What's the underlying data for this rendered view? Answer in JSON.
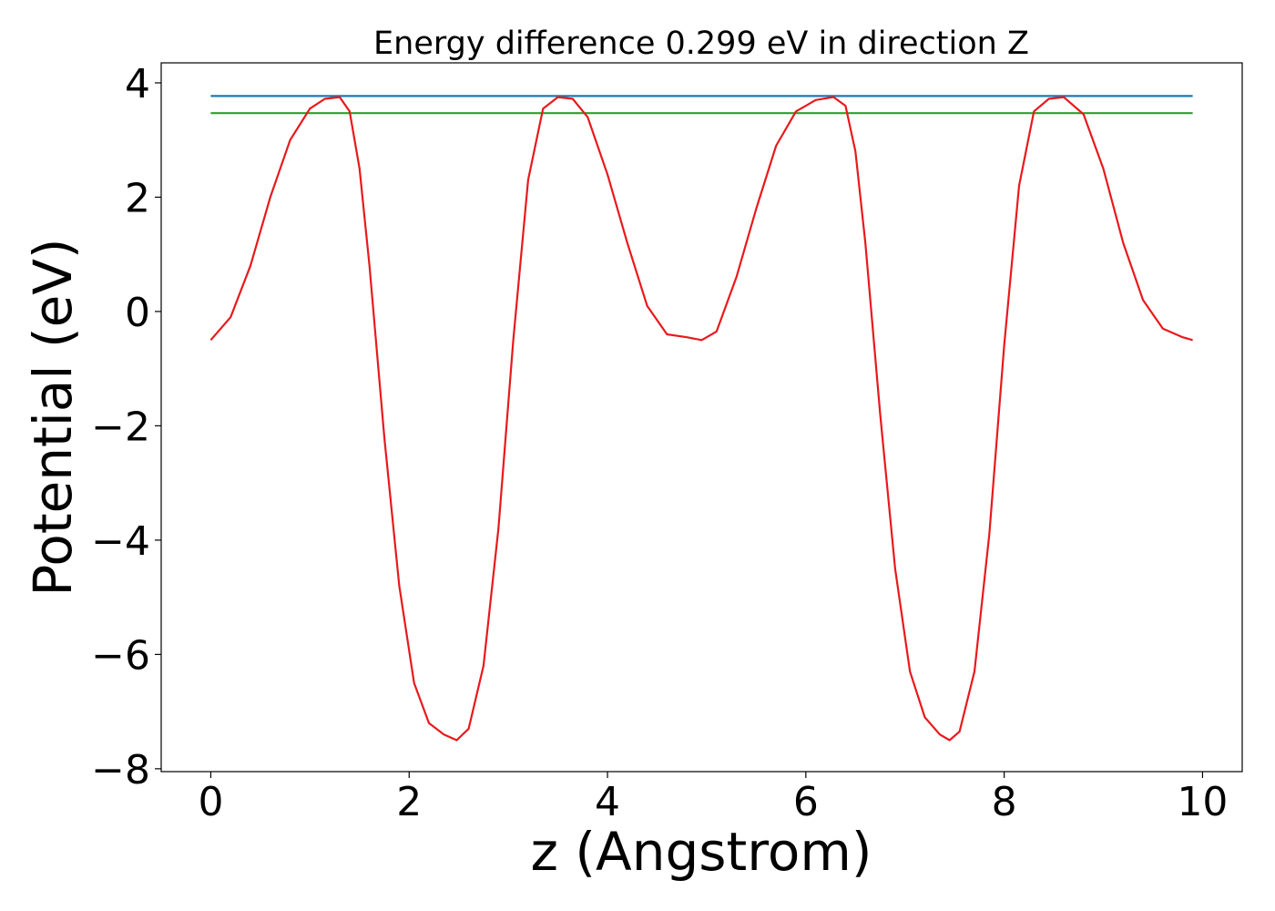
{
  "chart_data": {
    "type": "line",
    "title": "Energy difference 0.299 eV in direction Z",
    "xlabel": "z (Angstrom)",
    "ylabel": "Potential (eV)",
    "xlim": [
      -0.5,
      10.4
    ],
    "ylim": [
      -8.05,
      4.35
    ],
    "xticks": [
      0,
      2,
      4,
      6,
      8,
      10
    ],
    "xtick_labels": [
      "0",
      "2",
      "4",
      "6",
      "8",
      "10"
    ],
    "yticks": [
      4,
      2,
      0,
      -2,
      -4,
      -6,
      -8
    ],
    "ytick_labels": [
      "4",
      "2",
      "0",
      "−2",
      "−4",
      "−6",
      "−8"
    ],
    "grid": false,
    "legend": "none",
    "series": [
      {
        "color": "#1f77b4",
        "x": [
          0.0,
          9.9
        ],
        "y": [
          3.77,
          3.77
        ]
      },
      {
        "color": "#2ca02c",
        "x": [
          0.0,
          9.9
        ],
        "y": [
          3.47,
          3.47
        ]
      },
      {
        "color": "#e8191c",
        "x": [
          0.0,
          0.2,
          0.4,
          0.6,
          0.8,
          1.0,
          1.15,
          1.3,
          1.4,
          1.5,
          1.6,
          1.75,
          1.9,
          2.05,
          2.2,
          2.35,
          2.48,
          2.6,
          2.75,
          2.9,
          3.05,
          3.2,
          3.35,
          3.5,
          3.65,
          3.8,
          4.0,
          4.2,
          4.4,
          4.6,
          4.8,
          4.95,
          5.1,
          5.3,
          5.5,
          5.7,
          5.9,
          6.1,
          6.28,
          6.4,
          6.5,
          6.6,
          6.75,
          6.9,
          7.05,
          7.2,
          7.35,
          7.45,
          7.55,
          7.7,
          7.85,
          8.0,
          8.15,
          8.3,
          8.45,
          8.6,
          8.8,
          9.0,
          9.2,
          9.4,
          9.6,
          9.8,
          9.9
        ],
        "y": [
          -0.5,
          -0.1,
          0.8,
          2.0,
          3.0,
          3.55,
          3.72,
          3.75,
          3.5,
          2.5,
          0.8,
          -2.2,
          -4.8,
          -6.5,
          -7.2,
          -7.4,
          -7.5,
          -7.3,
          -6.2,
          -3.8,
          -0.5,
          2.3,
          3.55,
          3.75,
          3.72,
          3.4,
          2.4,
          1.2,
          0.1,
          -0.4,
          -0.45,
          -0.5,
          -0.35,
          0.6,
          1.8,
          2.9,
          3.5,
          3.7,
          3.75,
          3.6,
          2.8,
          1.2,
          -1.8,
          -4.5,
          -6.3,
          -7.1,
          -7.4,
          -7.5,
          -7.35,
          -6.3,
          -3.9,
          -0.6,
          2.2,
          3.5,
          3.72,
          3.75,
          3.45,
          2.5,
          1.2,
          0.2,
          -0.3,
          -0.45,
          -0.5
        ]
      }
    ]
  }
}
